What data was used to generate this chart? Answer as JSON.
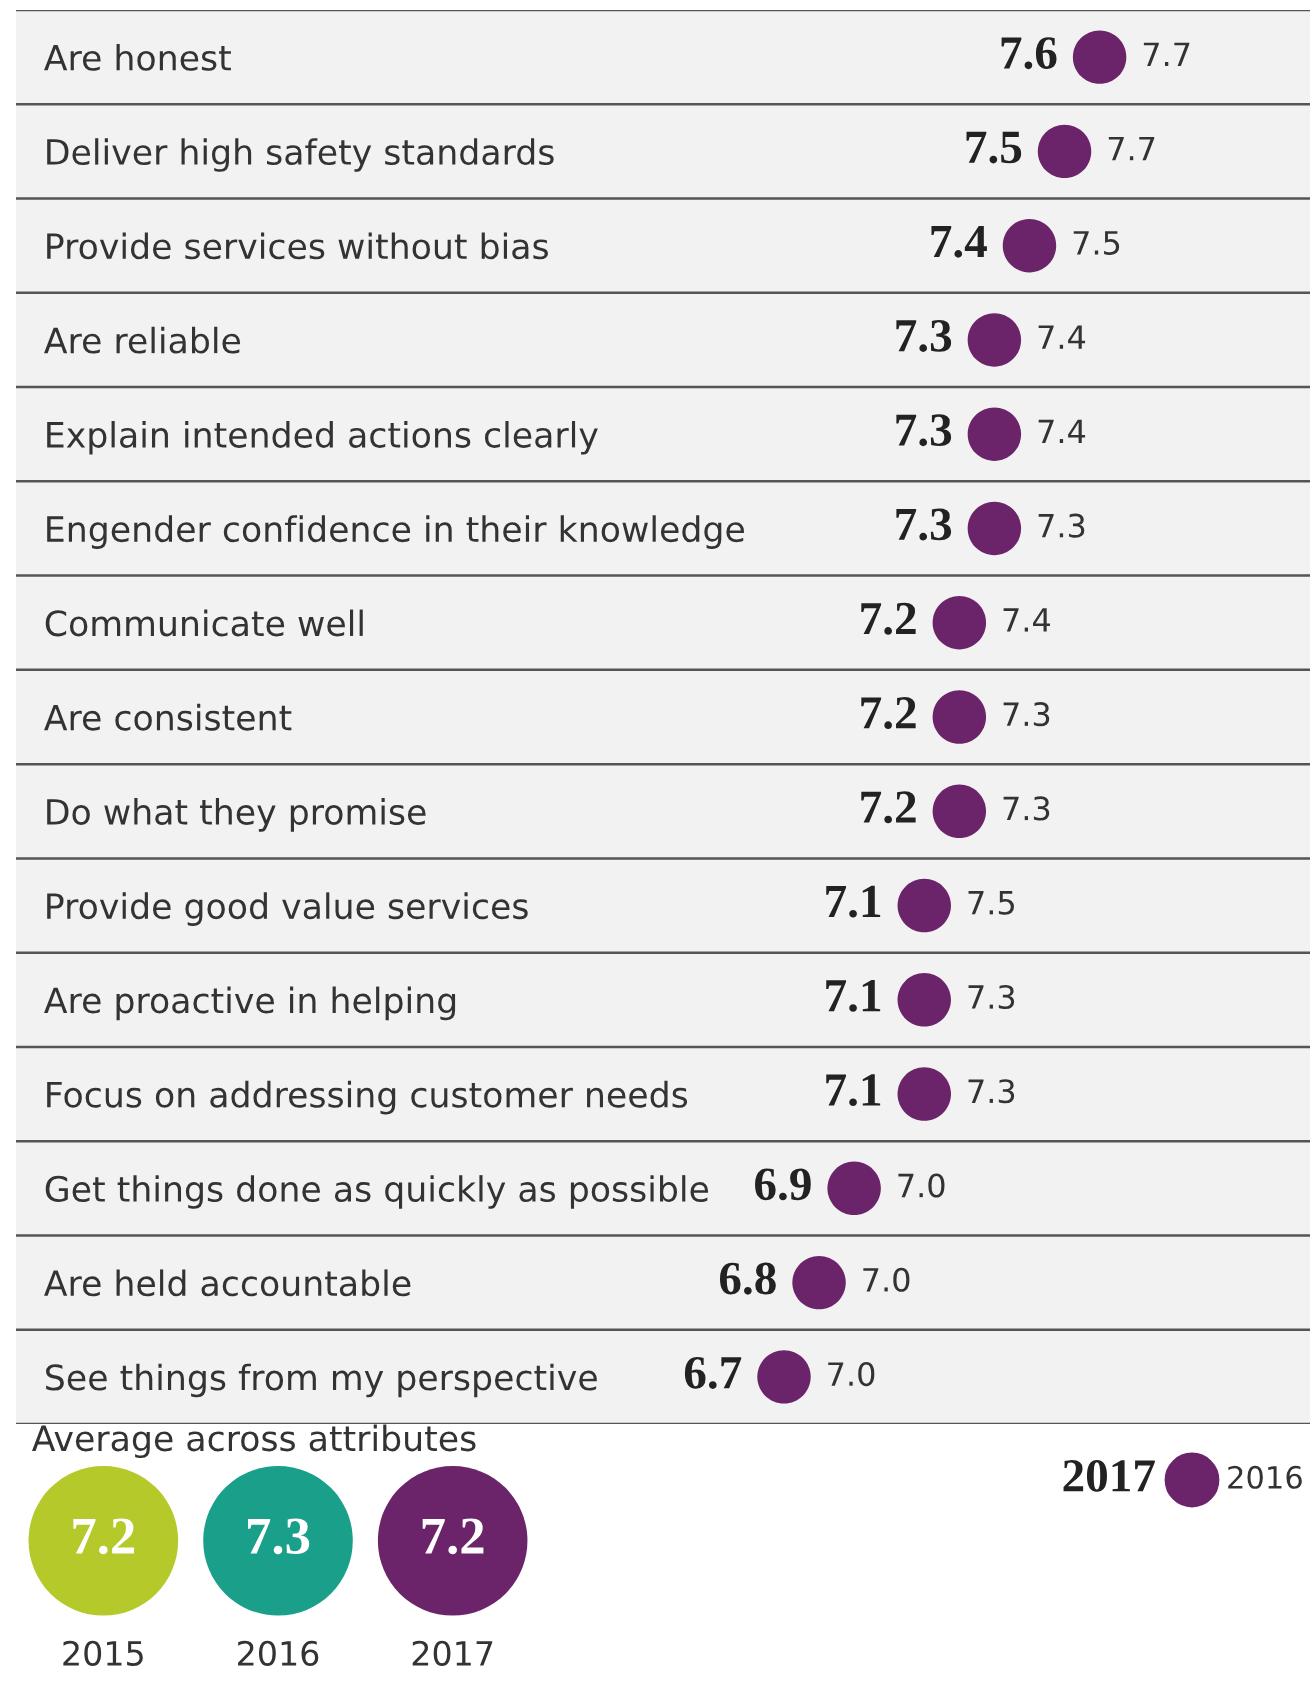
{
  "chart_data": [
    {
      "type": "scatter",
      "orientation": "horizontal",
      "categories": [
        "Are honest",
        "Deliver high safety standards",
        "Provide services without bias",
        "Are reliable",
        "Explain intended actions clearly",
        "Engender confidence in their knowledge",
        "Communicate well",
        "Are consistent",
        "Do what they promise",
        "Provide good value services",
        "Are proactive in helping",
        "Focus on addressing customer needs",
        "Get things done as quickly as possible",
        "Are held accountable",
        "See things from my perspective"
      ],
      "series": [
        {
          "name": "2017",
          "color": "#6b2469",
          "values": [
            7.6,
            7.5,
            7.4,
            7.3,
            7.3,
            7.3,
            7.2,
            7.2,
            7.2,
            7.1,
            7.1,
            7.1,
            6.9,
            6.8,
            6.7
          ],
          "value_labels": [
            "7.6",
            "7.5",
            "7.4",
            "7.3",
            "7.3",
            "7.3",
            "7.2",
            "7.2",
            "7.2",
            "7.1",
            "7.1",
            "7.1",
            "6.9",
            "6.8",
            "6.7"
          ]
        }
      ],
      "annotations": [
        {
          "text": "7.7",
          "x": 7.6,
          "y": "Are honest"
        },
        {
          "text": "7.7",
          "x": 7.5,
          "y": "Deliver high safety standards"
        },
        {
          "text": "7.5",
          "x": 7.4,
          "y": "Provide services without bias"
        },
        {
          "text": "7.4",
          "x": 7.3,
          "y": "Are reliable"
        },
        {
          "text": "7.4",
          "x": 7.3,
          "y": "Explain intended actions clearly"
        },
        {
          "text": "7.3",
          "x": 7.3,
          "y": "Engender confidence in their knowledge"
        },
        {
          "text": "7.4",
          "x": 7.2,
          "y": "Communicate well"
        },
        {
          "text": "7.3",
          "x": 7.2,
          "y": "Are consistent"
        },
        {
          "text": "7.3",
          "x": 7.2,
          "y": "Do what they promise"
        },
        {
          "text": "7.5",
          "x": 7.1,
          "y": "Provide good value services"
        },
        {
          "text": "7.3",
          "x": 7.1,
          "y": "Are proactive in helping"
        },
        {
          "text": "7.3",
          "x": 7.1,
          "y": "Focus on addressing customer needs"
        },
        {
          "text": "7.0",
          "x": 6.9,
          "y": "Get things done as quickly as possible"
        },
        {
          "text": "7.0",
          "x": 6.8,
          "y": "Are held accountable"
        },
        {
          "text": "7.0",
          "x": 6.7,
          "y": "See things from my perspective"
        },
        "2016"
      ],
      "xlim": [
        4.51,
        8.2
      ],
      "tick_labels": "y",
      "legend": "bottom right",
      "grid": false
    },
    {
      "type": "other",
      "title": "Average across attributes",
      "categories": [
        "2015",
        "2016",
        "2017"
      ],
      "values": [
        7.2,
        7.3,
        7.2
      ],
      "colors": [
        "#b5c92a",
        "#1aa08a",
        "#6b2469"
      ],
      "data_labels": true
    }
  ]
}
